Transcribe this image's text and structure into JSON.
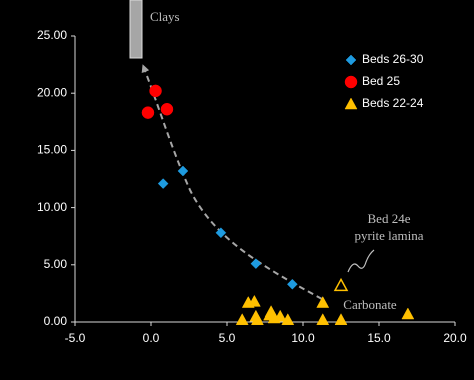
{
  "chart_data": {
    "type": "scatter",
    "series": [
      {
        "name": "Beds 26-30",
        "color": "#1e9be0",
        "marker": "diamond",
        "x": [
          0.8,
          2.1,
          4.6,
          6.9,
          9.3
        ],
        "values": [
          12.1,
          13.2,
          7.8,
          5.1,
          3.3
        ]
      },
      {
        "name": "Bed 25",
        "color": "#ff0000",
        "marker": "circle",
        "x": [
          0.3,
          -0.2,
          1.05
        ],
        "values": [
          20.2,
          18.3,
          18.6
        ]
      },
      {
        "name": "Beds 22-24",
        "color": "#ffc000",
        "marker": "triangle",
        "x": [
          6.4,
          6.8,
          6.0,
          6.9,
          7.0,
          7.8,
          7.9,
          8.1,
          8.5,
          9.0,
          11.3,
          11.3,
          12.5,
          16.9
        ],
        "values": [
          1.7,
          1.8,
          0.2,
          0.5,
          0.2,
          0.6,
          0.9,
          0.35,
          0.5,
          0.2,
          1.7,
          0.2,
          0.2,
          0.7
        ]
      }
    ],
    "annotations": [
      {
        "lines": [
          "Bed 24e",
          "pyrite lamina"
        ],
        "x": 12.5,
        "y": 3.2
      },
      {
        "lines": [
          "Carbonate"
        ]
      },
      {
        "lines": [
          "Clays"
        ]
      }
    ],
    "xlim": [
      -5,
      20
    ],
    "xticks": [
      {
        "value": -5,
        "label": "-5.0"
      },
      {
        "value": 0,
        "label": "0.0"
      },
      {
        "value": 5,
        "label": "5.0"
      },
      {
        "value": 10,
        "label": "10.0"
      },
      {
        "value": 15,
        "label": "15.0"
      },
      {
        "value": 20,
        "label": "20.0"
      }
    ],
    "ylim": [
      0,
      25
    ],
    "yticks": [
      {
        "value": 0,
        "label": "0.00"
      },
      {
        "value": 5,
        "label": "5.00"
      },
      {
        "value": 10,
        "label": "10.00"
      },
      {
        "value": 15,
        "label": "15.00"
      },
      {
        "value": 20,
        "label": "20.00"
      },
      {
        "value": 25,
        "label": "25.00"
      }
    ],
    "grid": false,
    "legend": "upper right"
  }
}
